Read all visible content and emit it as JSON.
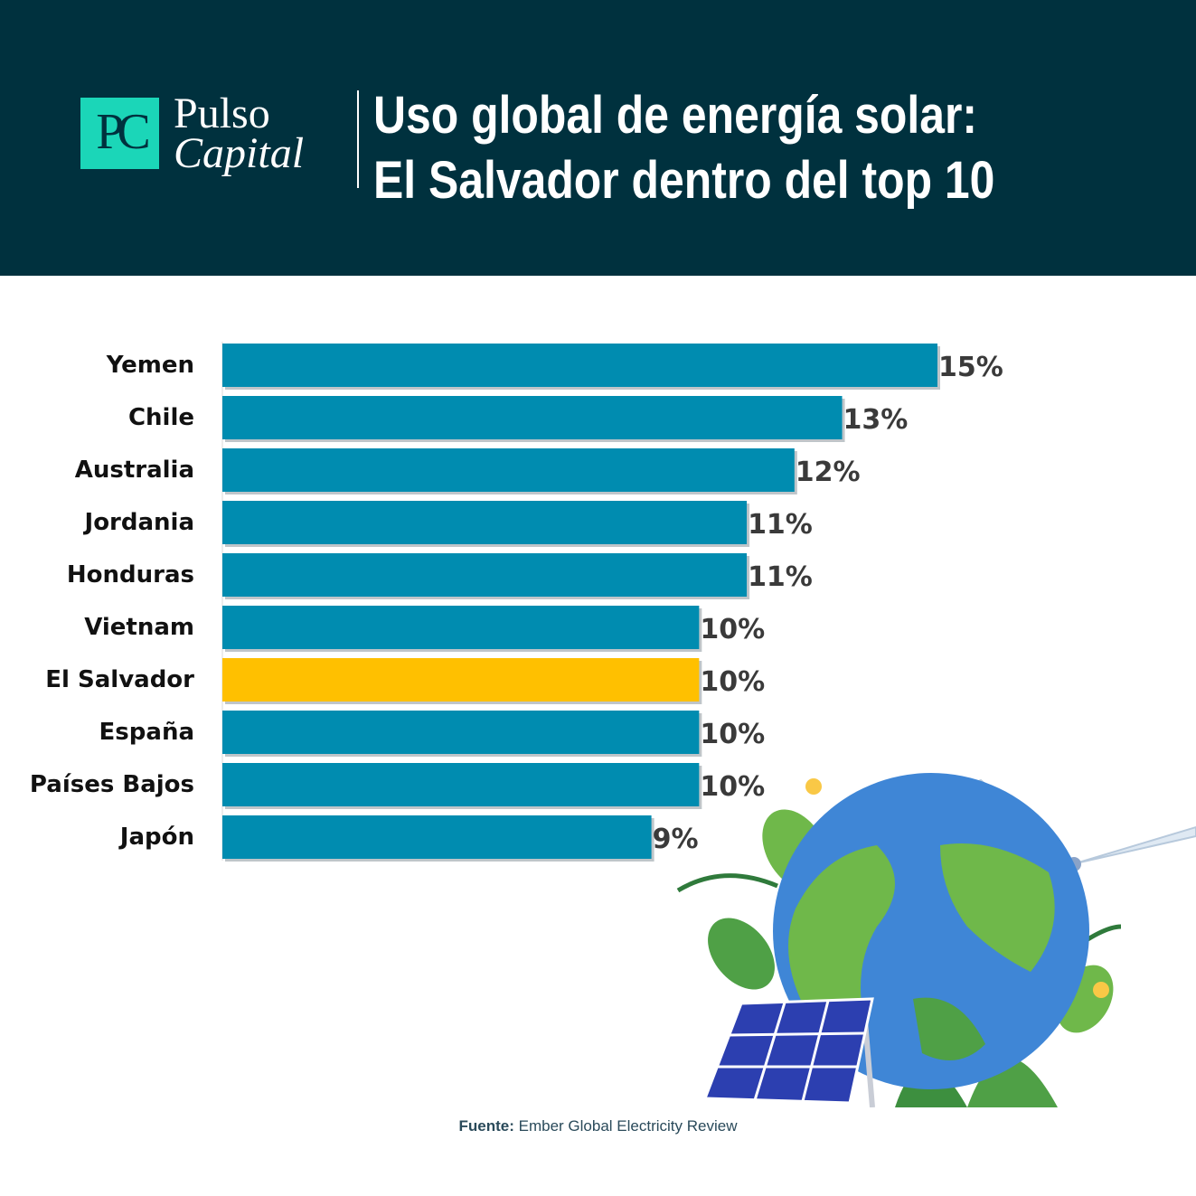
{
  "brand": {
    "line1": "Pulso",
    "line2": "Capital",
    "mark": "PC"
  },
  "title": {
    "line1": "Uso global de energía solar:",
    "line2": "El Salvador dentro del top 10"
  },
  "source": {
    "label": "Fuente:",
    "text": "Ember Global Electricity Review"
  },
  "colors": {
    "header_bg": "#00313e",
    "bar": "#008cb0",
    "highlight": "#ffc000",
    "logo": "#1bd6b8"
  },
  "illustration": {
    "icons": [
      "globe-icon",
      "wind-turbine-icon",
      "solar-panel-icon",
      "plant-leaves-icon"
    ]
  },
  "chart_data": {
    "type": "bar",
    "orientation": "horizontal",
    "categories": [
      "Yemen",
      "Chile",
      "Australia",
      "Jordania",
      "Honduras",
      "Vietnam",
      "El Salvador",
      "España",
      "Países Bajos",
      "Japón"
    ],
    "values": [
      15,
      13,
      12,
      11,
      11,
      10,
      10,
      10,
      10,
      9
    ],
    "value_labels": [
      "15%",
      "13%",
      "12%",
      "11%",
      "11%",
      "10%",
      "10%",
      "10%",
      "10%",
      "9%"
    ],
    "highlight": "El Salvador",
    "unit": "%",
    "xlim": [
      0,
      15
    ],
    "grid": false,
    "legend": "none"
  }
}
